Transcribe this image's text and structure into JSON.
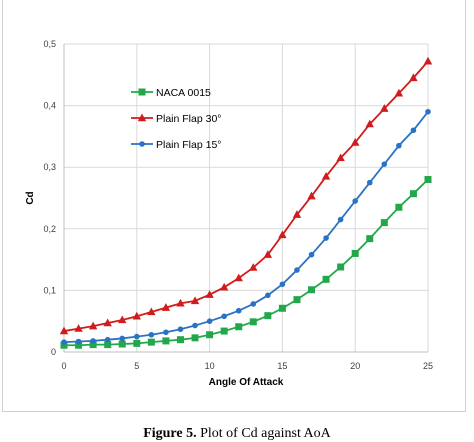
{
  "chart_data": {
    "type": "line",
    "xlabel": "Angle Of Attack",
    "ylabel": "Cd",
    "xlim": [
      0,
      25
    ],
    "ylim": [
      0,
      0.5
    ],
    "x_ticks": [
      "0",
      "5",
      "10",
      "15",
      "20",
      "25"
    ],
    "y_ticks": [
      "0",
      "0,1",
      "0,2",
      "0,3",
      "0,4",
      "0,5"
    ],
    "grid": "vertical and horizontal",
    "legend_position": "upper-left",
    "x": [
      0,
      1,
      2,
      3,
      4,
      5,
      6,
      7,
      8,
      9,
      10,
      11,
      12,
      13,
      14,
      15,
      16,
      17,
      18,
      19,
      20,
      21,
      22,
      23,
      24,
      25
    ],
    "series": [
      {
        "name": "NACA 0015",
        "color": "#22a84a",
        "marker": "square",
        "values": [
          0.011,
          0.011,
          0.012,
          0.012,
          0.013,
          0.014,
          0.016,
          0.018,
          0.02,
          0.023,
          0.028,
          0.034,
          0.041,
          0.049,
          0.059,
          0.071,
          0.085,
          0.101,
          0.118,
          0.138,
          0.16,
          0.184,
          0.21,
          0.235,
          0.257,
          0.28
        ]
      },
      {
        "name": "Plain Flap 30°",
        "color": "#d01c1c",
        "marker": "triangle",
        "values": [
          0.034,
          0.038,
          0.042,
          0.047,
          0.052,
          0.058,
          0.065,
          0.072,
          0.079,
          0.083,
          0.093,
          0.105,
          0.12,
          0.137,
          0.158,
          0.19,
          0.223,
          0.253,
          0.285,
          0.315,
          0.34,
          0.37,
          0.395,
          0.42,
          0.445,
          0.472
        ]
      },
      {
        "name": "Plain Flap 15°",
        "color": "#2a73c4",
        "marker": "circle",
        "values": [
          0.016,
          0.017,
          0.018,
          0.02,
          0.022,
          0.025,
          0.028,
          0.032,
          0.037,
          0.043,
          0.05,
          0.058,
          0.067,
          0.078,
          0.092,
          0.11,
          0.133,
          0.158,
          0.185,
          0.215,
          0.245,
          0.275,
          0.305,
          0.335,
          0.36,
          0.39
        ]
      }
    ]
  },
  "caption": {
    "label": "Figure 5.",
    "text": "Plot of Cd against AoA"
  }
}
